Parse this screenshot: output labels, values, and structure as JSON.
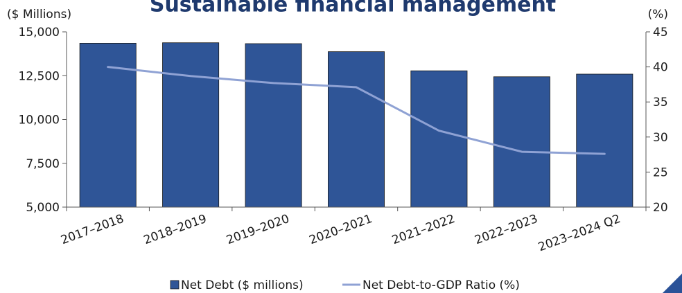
{
  "chart_data": {
    "type": "bar",
    "title": "Sustainable financial management",
    "y_left_label": "($ Millions)",
    "y_right_label": "(%)",
    "categories": [
      "2017–2018",
      "2018–2019",
      "2019–2020",
      "2020–2021",
      "2021–2022",
      "2022–2023",
      "2023–2024 Q2"
    ],
    "ylim_left": [
      5000,
      15000
    ],
    "yticks_left": [
      "5,000",
      "7,500",
      "10,000",
      "12,500",
      "15,000"
    ],
    "yticks_left_values": [
      5000,
      7500,
      10000,
      12500,
      15000
    ],
    "ylim_right": [
      20,
      45
    ],
    "yticks_right": [
      "20",
      "25",
      "30",
      "35",
      "40",
      "45"
    ],
    "yticks_right_values": [
      20,
      25,
      30,
      35,
      40,
      45
    ],
    "grid": false,
    "legend_position": "bottom",
    "series": [
      {
        "name": "Net Debt ($ millions)",
        "type": "bar",
        "axis": "left",
        "color": "#2f5597",
        "values": [
          14350,
          14380,
          14330,
          13870,
          12780,
          12440,
          12590
        ]
      },
      {
        "name": "Net Debt-to-GDP Ratio (%)",
        "type": "line",
        "axis": "right",
        "color": "#8fa2d4",
        "values": [
          40.0,
          38.7,
          37.7,
          37.1,
          30.9,
          27.9,
          27.6
        ]
      }
    ]
  }
}
